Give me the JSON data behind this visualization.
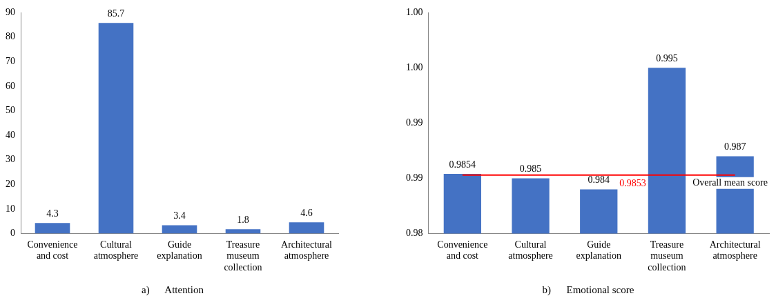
{
  "chart_data": [
    {
      "type": "bar",
      "categories": [
        "Convenience and cost",
        "Cultural atmosphere",
        "Guide explanation",
        "Treasure museum collection",
        "Architectural atmosphere"
      ],
      "values": [
        4.3,
        85.7,
        3.4,
        1.8,
        4.6
      ],
      "color": "#4472c4",
      "ylim": [
        0,
        90
      ],
      "yticks": [
        0,
        10,
        20,
        30,
        40,
        50,
        60,
        70,
        80,
        90
      ],
      "grid": false,
      "legend": false,
      "data_labels": true,
      "annotations": [
        "a)      Attention"
      ]
    },
    {
      "type": "bar",
      "categories": [
        "Convenience and cost",
        "Cultural atmosphere",
        "Guide explanation",
        "Treasure museum collection",
        "Architectural atmosphere"
      ],
      "values": [
        0.9854,
        0.985,
        0.984,
        0.995,
        0.987
      ],
      "color": "#4472c4",
      "ylim": [
        0.98,
        1.0
      ],
      "yticks": [
        {
          "value": 0.98,
          "label": "0.98"
        },
        {
          "value": 0.985,
          "label": "0.99"
        },
        {
          "value": 0.99,
          "label": "0.99"
        },
        {
          "value": 0.995,
          "label": "1.00"
        },
        {
          "value": 1.0,
          "label": "1.00"
        }
      ],
      "grid": false,
      "legend": false,
      "data_labels": true,
      "ref_lines": [
        {
          "axis": "y",
          "value": 0.9853,
          "label": "Overall mean score",
          "color": "#ff0000"
        }
      ],
      "annotations": [
        {
          "text": "0.9853",
          "y": 0.9853
        },
        "b)      Emotional score"
      ]
    }
  ]
}
